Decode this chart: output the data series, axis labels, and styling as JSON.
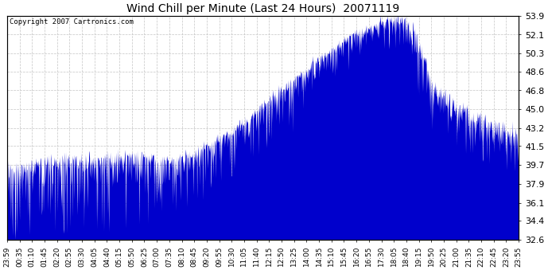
{
  "title": "Wind Chill per Minute (Last 24 Hours)  20071119",
  "copyright": "Copyright 2007 Cartronics.com",
  "yticks": [
    32.6,
    34.4,
    36.1,
    37.9,
    39.7,
    41.5,
    43.2,
    45.0,
    46.8,
    48.6,
    50.3,
    52.1,
    53.9
  ],
  "ymin": 32.6,
  "ymax": 53.9,
  "line_color": "#0000CC",
  "bg_color": "#FFFFFF",
  "grid_color": "#C8C8C8",
  "xtick_labels": [
    "23:59",
    "00:35",
    "01:10",
    "01:45",
    "02:20",
    "02:55",
    "03:30",
    "04:05",
    "04:40",
    "05:15",
    "05:50",
    "06:25",
    "07:00",
    "07:35",
    "08:10",
    "08:45",
    "09:20",
    "09:55",
    "10:30",
    "11:05",
    "11:40",
    "12:15",
    "12:50",
    "13:25",
    "14:00",
    "14:35",
    "15:10",
    "15:45",
    "16:20",
    "16:55",
    "17:30",
    "18:05",
    "18:40",
    "19:15",
    "19:50",
    "20:25",
    "21:00",
    "21:35",
    "22:10",
    "22:45",
    "23:20",
    "23:55"
  ]
}
